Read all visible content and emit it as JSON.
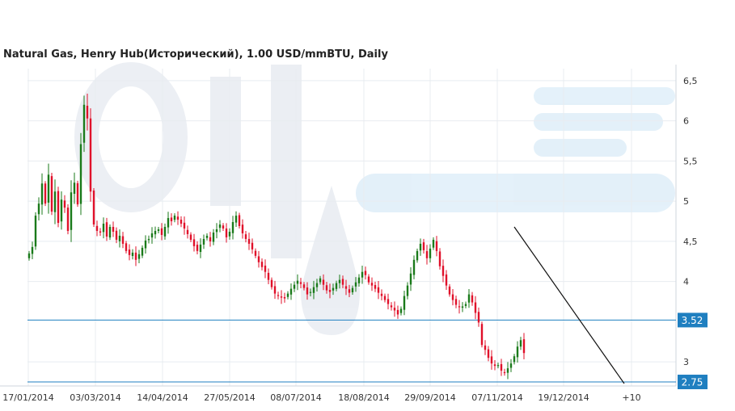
{
  "chart_data": {
    "type": "candlestick",
    "title": "Natural Gas, Henry Hub(Исторический), 1.00 USD/mmBTU, Daily",
    "xlabel": "",
    "ylabel": "",
    "ylim": [
      2.7,
      6.65
    ],
    "y_ticks": [
      "6,5",
      "6",
      "5,5",
      "5",
      "4,5",
      "4",
      "3"
    ],
    "y_tick_values": [
      6.5,
      6.0,
      5.5,
      5.0,
      4.5,
      4.0,
      3.0
    ],
    "x_tick_labels": [
      "17/01/2014",
      "03/03/2014",
      "14/04/2014",
      "27/05/2014",
      "08/07/2014",
      "18/08/2014",
      "29/09/2014",
      "07/11/2014",
      "19/12/2014",
      "+10"
    ],
    "grid": true,
    "up_color": "#1a7a1a",
    "down_color": "#e0102a",
    "level_color": "#1f7fc0",
    "horizontal_levels": [
      {
        "value": 3.52,
        "label": "3.52"
      },
      {
        "value": 2.75,
        "label": "2.75"
      }
    ],
    "trendline": {
      "from_close_index": 150,
      "from_value": 4.68,
      "to_close_index": 182,
      "to_value": 2.73
    },
    "closes": [
      4.35,
      4.43,
      4.82,
      4.97,
      5.22,
      4.97,
      5.33,
      4.87,
      5.12,
      4.73,
      5.02,
      4.92,
      4.63,
      5.11,
      5.23,
      4.96,
      5.71,
      6.2,
      6.03,
      5.12,
      4.71,
      4.63,
      4.61,
      4.72,
      4.56,
      4.68,
      4.62,
      4.52,
      4.57,
      4.47,
      4.38,
      4.33,
      4.36,
      4.27,
      4.34,
      4.42,
      4.51,
      4.53,
      4.6,
      4.63,
      4.65,
      4.58,
      4.68,
      4.79,
      4.75,
      4.82,
      4.77,
      4.72,
      4.66,
      4.59,
      4.52,
      4.44,
      4.38,
      4.46,
      4.53,
      4.57,
      4.5,
      4.61,
      4.65,
      4.71,
      4.66,
      4.55,
      4.62,
      4.74,
      4.82,
      4.69,
      4.6,
      4.53,
      4.47,
      4.4,
      4.32,
      4.24,
      4.18,
      4.12,
      4.02,
      3.93,
      3.85,
      3.82,
      3.8,
      3.79,
      3.85,
      3.91,
      3.96,
      4.01,
      3.97,
      3.92,
      3.84,
      3.87,
      3.93,
      3.98,
      4.04,
      3.96,
      3.89,
      3.87,
      3.92,
      3.98,
      4.02,
      3.96,
      3.91,
      3.86,
      3.92,
      3.99,
      4.05,
      4.12,
      4.08,
      3.99,
      3.95,
      3.91,
      3.86,
      3.82,
      3.77,
      3.72,
      3.68,
      3.64,
      3.59,
      3.66,
      3.82,
      3.95,
      4.1,
      4.27,
      4.38,
      4.47,
      4.39,
      4.29,
      4.41,
      4.52,
      4.38,
      4.19,
      4.07,
      3.95,
      3.84,
      3.77,
      3.71,
      3.68,
      3.69,
      3.72,
      3.84,
      3.74,
      3.61,
      3.49,
      3.21,
      3.15,
      3.05,
      2.98,
      2.95,
      2.96,
      2.89,
      2.87,
      2.92,
      2.98,
      3.07,
      3.19,
      3.27,
      3.11
    ]
  }
}
